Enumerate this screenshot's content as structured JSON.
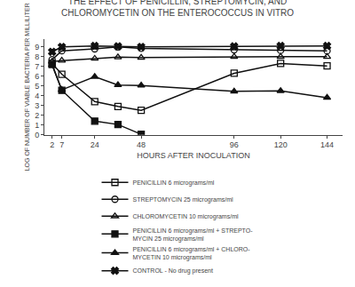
{
  "chart_data": {
    "type": "line",
    "title": "THE EFFECT OF PENICILLIN, STREPTOMYCIN, AND\nCHLOROMYCETIN ON THE ENTEROCOCCUS IN VITRO",
    "xlabel": "HOURS AFTER INOCULATION",
    "ylabel": "LOG OF NUMBER OF VIABLE BACTERIA PER MILLILITER",
    "xlim": [
      -2,
      152
    ],
    "ylim": [
      0,
      9.8
    ],
    "xticks": [
      2,
      7,
      24,
      48,
      96,
      120,
      144
    ],
    "yticks": [
      0,
      1,
      2,
      3,
      4,
      5,
      6,
      7,
      8,
      9
    ],
    "grid": false,
    "legend": "bottom",
    "series": [
      {
        "name": "PENICILLIN 6 micrograms/ml",
        "color": "#111111",
        "marker": "square-open",
        "x": [
          2,
          7,
          24,
          36,
          48,
          96,
          120,
          144
        ],
        "values": [
          7.3,
          6.2,
          3.4,
          2.9,
          2.5,
          6.3,
          7.3,
          7.05
        ]
      },
      {
        "name": "STREPTOMYCIN 25 micrograms/ml",
        "color": "#111111",
        "marker": "circle-open",
        "x": [
          2,
          7,
          24,
          36,
          48,
          96,
          120,
          144
        ],
        "values": [
          7.7,
          8.6,
          8.8,
          9.0,
          8.85,
          8.7,
          8.65,
          8.6
        ]
      },
      {
        "name": "CHLOROMYCETIN 10 micrograms/ml",
        "color": "#111111",
        "marker": "triangle-up-open",
        "x": [
          2,
          7,
          24,
          36,
          48,
          96,
          120,
          144
        ],
        "values": [
          7.5,
          7.6,
          7.8,
          7.95,
          7.9,
          8.0,
          8.0,
          8.0
        ]
      },
      {
        "name": "PENICILLIN 6 micrograms/ml + STREPTO-\nMYCIN 25 micrograms/ml",
        "color": "#111111",
        "marker": "square",
        "x": [
          2,
          7,
          24,
          36,
          48
        ],
        "values": [
          7.2,
          4.55,
          1.4,
          1.05,
          0.05
        ]
      },
      {
        "name": "PENICILLIN 6 micrograms/ml + CHLORO-\nMYCETIN 10 micrograms/ml",
        "color": "#111111",
        "marker": "triangle-up",
        "x": [
          2,
          7,
          24,
          36,
          48,
          96,
          120,
          144
        ],
        "values": [
          7.15,
          4.6,
          5.95,
          5.1,
          5.05,
          4.45,
          4.5,
          3.8
        ]
      },
      {
        "name": "CONTROL - No drug present",
        "color": "#111111",
        "marker": "x",
        "x": [
          2,
          7,
          24,
          36,
          48,
          96,
          120,
          144
        ],
        "values": [
          8.5,
          9.0,
          9.1,
          9.05,
          9.0,
          9.05,
          9.1,
          9.1
        ]
      }
    ]
  }
}
